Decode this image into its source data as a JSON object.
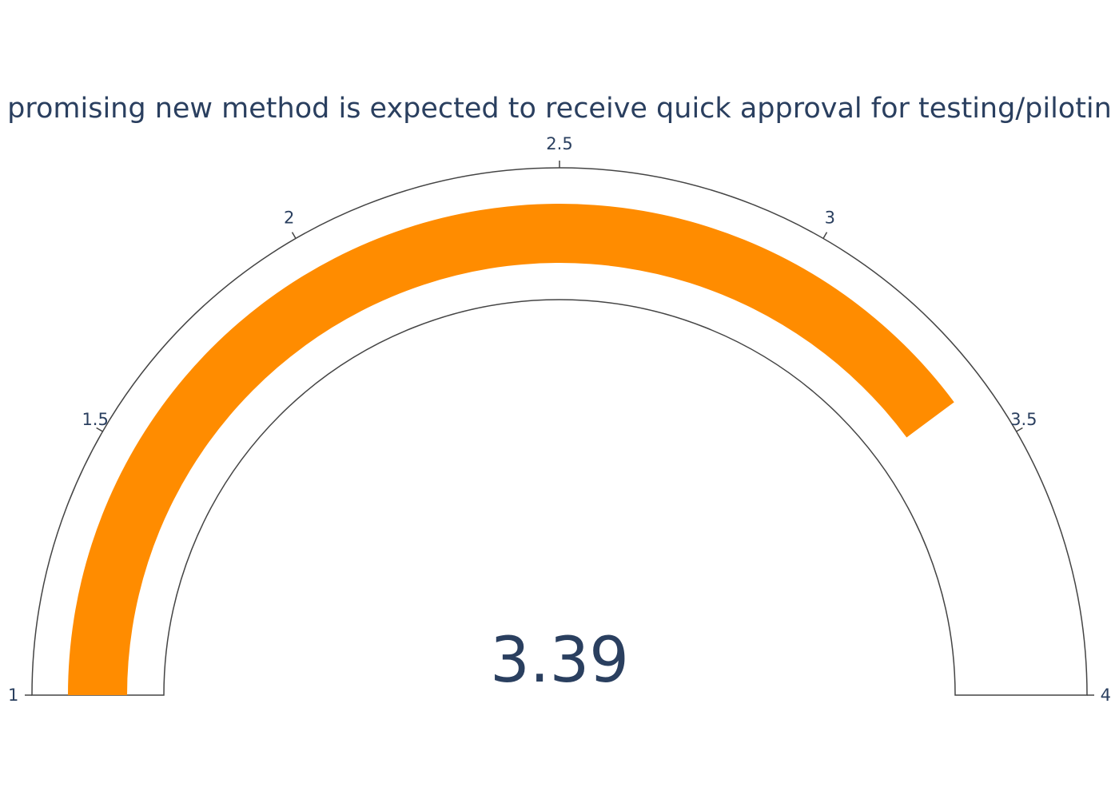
{
  "chart_data": {
    "type": "gauge",
    "title": "promising new method is expected to receive quick approval for testing/pilotin",
    "value": 3.39,
    "value_label": "3.39",
    "range": [
      1,
      4
    ],
    "ticks": [
      {
        "value": 1,
        "label": "1"
      },
      {
        "value": 1.5,
        "label": "1.5"
      },
      {
        "value": 2,
        "label": "2"
      },
      {
        "value": 2.5,
        "label": "2.5"
      },
      {
        "value": 3,
        "label": "3"
      },
      {
        "value": 3.5,
        "label": "3.5"
      },
      {
        "value": 4,
        "label": "4"
      }
    ],
    "colors": {
      "bar": "#ff8c00",
      "outline": "#444444",
      "text": "#2a3f5f",
      "background": "#ffffff"
    }
  }
}
